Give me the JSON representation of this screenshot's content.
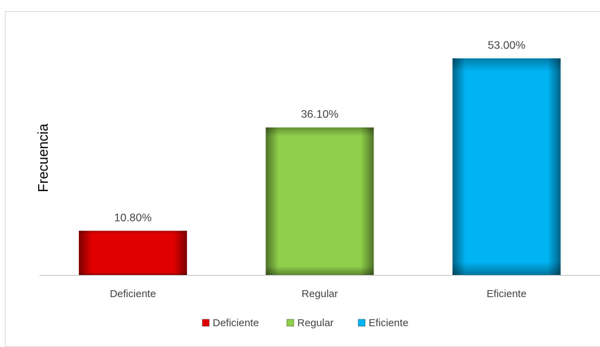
{
  "chart_data": {
    "type": "bar",
    "title": "",
    "xlabel": "",
    "ylabel": "Frecuencia",
    "categories": [
      "Deficiente",
      "Regular",
      "Eficiente"
    ],
    "values": [
      10.8,
      36.1,
      53.0
    ],
    "value_labels": [
      "10.80%",
      "36.10%",
      "53.00%"
    ],
    "unit": "%",
    "colors": [
      "#e00000",
      "#8fcf4a",
      "#00b3f2"
    ],
    "ylim": [
      0,
      60
    ],
    "grid": false,
    "legend": {
      "position": "bottom",
      "entries": [
        "Deficiente",
        "Regular",
        "Eficiente"
      ]
    }
  }
}
